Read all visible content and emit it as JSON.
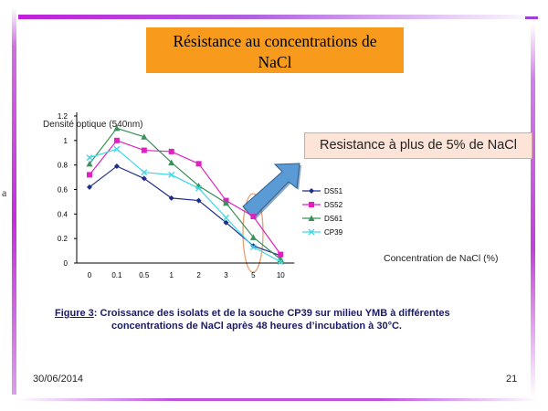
{
  "slide": {
    "title_line1": "Résistance au concentrations  de",
    "title_line2": "NaCl",
    "callout": "Resistance à plus de 5% de NaCl",
    "caption_label": "Figure 3",
    "caption_line1": ": Croissance des isolats et de la souche CP39 sur milieu YMB à différentes",
    "caption_line2": "concentrations de NaCl après 48 heures d’incubation à 30°C.",
    "date": "30/06/2014",
    "page_number": "21",
    "stray_glyph": "a"
  },
  "colors": {
    "title_bg": "#F89B1C",
    "callout_bg": "#FDE4D8",
    "arrow": "#5B9BD5",
    "highlight_ellipse": "#E8A070"
  },
  "chart_data": {
    "type": "line",
    "ylabel": "Densité optique (540nm)",
    "xlabel": "Concentration de NaCl (%)",
    "categories": [
      "0",
      "0.1",
      "0.5",
      "1",
      "2",
      "3",
      "5",
      "10"
    ],
    "yticks": [
      "0",
      "0.2",
      "0.4",
      "0.6",
      "0.8",
      "1",
      "1.2"
    ],
    "ylim": [
      0,
      1.2
    ],
    "grid": false,
    "legend_position": "right",
    "series": [
      {
        "name": "DS51",
        "color": "#1F2E8C",
        "marker": "diamond",
        "values": [
          0.62,
          0.79,
          0.69,
          0.53,
          0.51,
          0.33,
          0.14,
          0.06
        ]
      },
      {
        "name": "DS52",
        "color": "#E020C0",
        "marker": "square",
        "values": [
          0.72,
          1.0,
          0.92,
          0.91,
          0.81,
          0.51,
          0.38,
          0.07
        ]
      },
      {
        "name": "DS61",
        "color": "#3A8F5A",
        "marker": "triangle",
        "values": [
          0.81,
          1.1,
          1.03,
          0.82,
          0.63,
          0.49,
          0.21,
          0.03
        ]
      },
      {
        "name": "CP39",
        "color": "#40D8E8",
        "marker": "x",
        "values": [
          0.86,
          0.93,
          0.74,
          0.72,
          0.61,
          0.37,
          0.13,
          0.01
        ]
      }
    ]
  }
}
